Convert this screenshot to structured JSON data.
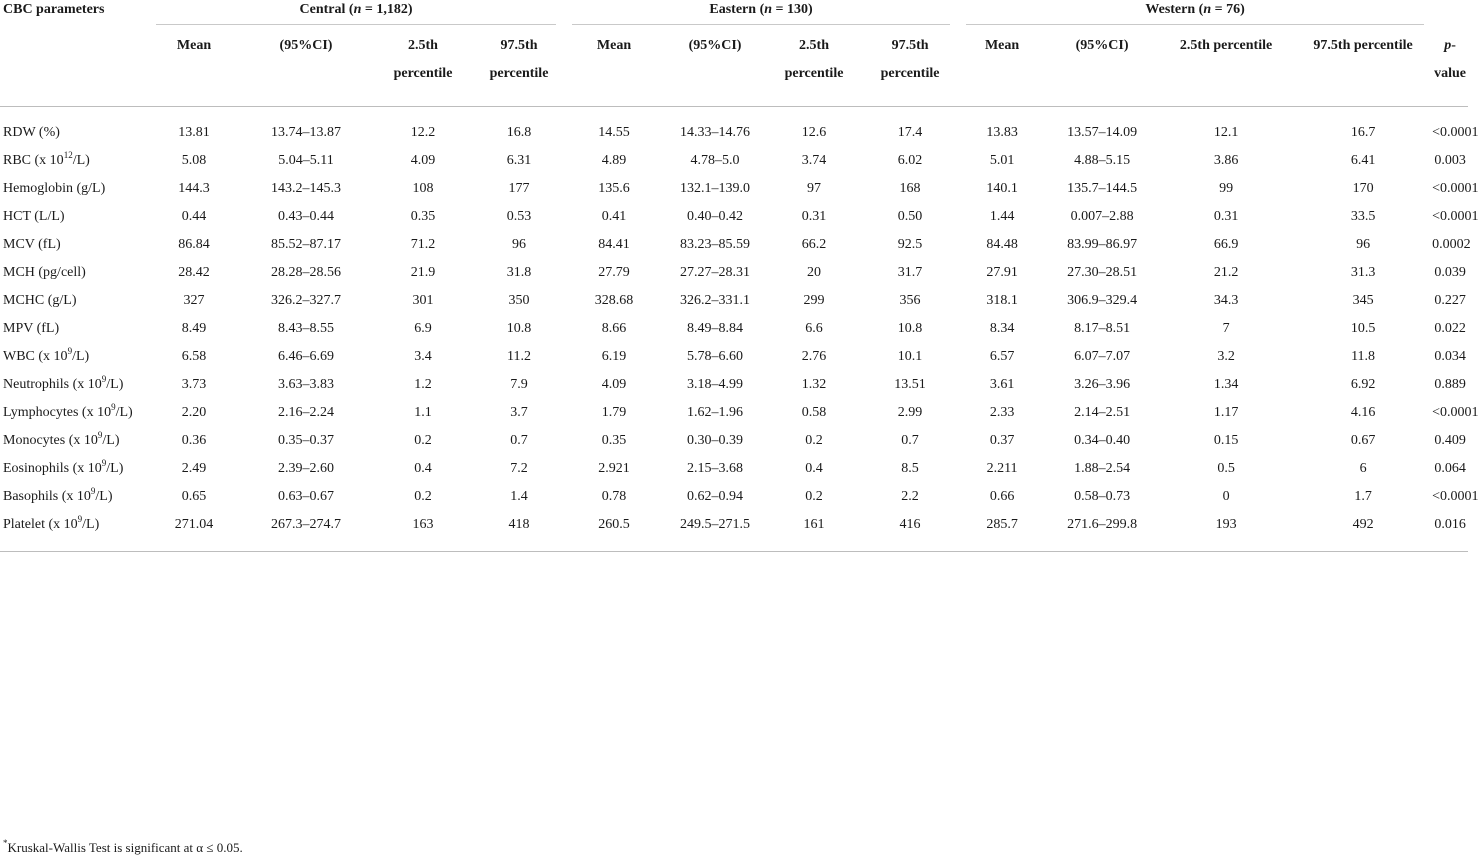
{
  "header": {
    "param_label": "CBC parameters",
    "groups": [
      {
        "name": "Central",
        "n_label": "n",
        "n_value": " = 1,182"
      },
      {
        "name": "Eastern",
        "n_label": "n",
        "n_value": " = 130"
      },
      {
        "name": "Western",
        "n_label": "n",
        "n_value": " = 76"
      }
    ],
    "sub": {
      "mean": "Mean",
      "ci": "(95%CI)",
      "p25_a": "2.5th",
      "p25_b": "percentile",
      "p975_a": "97.5th",
      "p975_b": "percentile",
      "p25_full": "2.5th percentile",
      "p975_full": "97.5th percentile",
      "pvalue_p": "p",
      "pvalue_rest": "-value"
    }
  },
  "rows": [
    {
      "pre": "RDW (%)",
      "sup": "",
      "post": "",
      "v": [
        "13.81",
        "13.74–13.87",
        "12.2",
        "16.8",
        "14.55",
        "14.33–14.76",
        "12.6",
        "17.4",
        "13.83",
        "13.57–14.09",
        "12.1",
        "16.7",
        "<0.0001"
      ]
    },
    {
      "pre": "RBC (x 10",
      "sup": "12",
      "post": "/L)",
      "v": [
        "5.08",
        "5.04–5.11",
        "4.09",
        "6.31",
        "4.89",
        "4.78–5.0",
        "3.74",
        "6.02",
        "5.01",
        "4.88–5.15",
        "3.86",
        "6.41",
        "0.003"
      ]
    },
    {
      "pre": "Hemoglobin (g/L)",
      "sup": "",
      "post": "",
      "v": [
        "144.3",
        "143.2–145.3",
        "108",
        "177",
        "135.6",
        "132.1–139.0",
        "97",
        "168",
        "140.1",
        "135.7–144.5",
        "99",
        "170",
        "<0.0001"
      ]
    },
    {
      "pre": "HCT (L/L)",
      "sup": "",
      "post": "",
      "v": [
        "0.44",
        "0.43–0.44",
        "0.35",
        "0.53",
        "0.41",
        "0.40–0.42",
        "0.31",
        "0.50",
        "1.44",
        "0.007–2.88",
        "0.31",
        "33.5",
        "<0.0001"
      ]
    },
    {
      "pre": "MCV (fL)",
      "sup": "",
      "post": "",
      "v": [
        "86.84",
        "85.52–87.17",
        "71.2",
        "96",
        "84.41",
        "83.23–85.59",
        "66.2",
        "92.5",
        "84.48",
        "83.99–86.97",
        "66.9",
        "96",
        "0.0002"
      ]
    },
    {
      "pre": "MCH (pg/cell)",
      "sup": "",
      "post": "",
      "v": [
        "28.42",
        "28.28–28.56",
        "21.9",
        "31.8",
        "27.79",
        "27.27–28.31",
        "20",
        "31.7",
        "27.91",
        "27.30–28.51",
        "21.2",
        "31.3",
        "0.039"
      ]
    },
    {
      "pre": "MCHC (g/L)",
      "sup": "",
      "post": "",
      "v": [
        "327",
        "326.2–327.7",
        "301",
        "350",
        "328.68",
        "326.2–331.1",
        "299",
        "356",
        "318.1",
        "306.9–329.4",
        "34.3",
        "345",
        "0.227"
      ]
    },
    {
      "pre": "MPV (fL)",
      "sup": "",
      "post": "",
      "v": [
        "8.49",
        "8.43–8.55",
        "6.9",
        "10.8",
        "8.66",
        "8.49–8.84",
        "6.6",
        "10.8",
        "8.34",
        "8.17–8.51",
        "7",
        "10.5",
        "0.022"
      ]
    },
    {
      "pre": "WBC (x 10",
      "sup": "9",
      "post": "/L)",
      "v": [
        "6.58",
        "6.46–6.69",
        "3.4",
        "11.2",
        "6.19",
        "5.78–6.60",
        "2.76",
        "10.1",
        "6.57",
        "6.07–7.07",
        "3.2",
        "11.8",
        "0.034"
      ]
    },
    {
      "pre": "Neutrophils (x 10",
      "sup": "9",
      "post": "/L)",
      "v": [
        "3.73",
        "3.63–3.83",
        "1.2",
        "7.9",
        "4.09",
        "3.18–4.99",
        "1.32",
        "13.51",
        "3.61",
        "3.26–3.96",
        "1.34",
        "6.92",
        "0.889"
      ]
    },
    {
      "pre": "Lymphocytes (x 10",
      "sup": "9",
      "post": "/L)",
      "v": [
        "2.20",
        "2.16–2.24",
        "1.1",
        "3.7",
        "1.79",
        "1.62–1.96",
        "0.58",
        "2.99",
        "2.33",
        "2.14–2.51",
        "1.17",
        "4.16",
        "<0.0001"
      ]
    },
    {
      "pre": "Monocytes (x 10",
      "sup": "9",
      "post": "/L)",
      "v": [
        "0.36",
        "0.35–0.37",
        "0.2",
        "0.7",
        "0.35",
        "0.30–0.39",
        "0.2",
        "0.7",
        "0.37",
        "0.34–0.40",
        "0.15",
        "0.67",
        "0.409"
      ]
    },
    {
      "pre": "Eosinophils (x 10",
      "sup": "9",
      "post": "/L)",
      "v": [
        "2.49",
        "2.39–2.60",
        "0.4",
        "7.2",
        "2.921",
        "2.15–3.68",
        "0.4",
        "8.5",
        "2.211",
        "1.88–2.54",
        "0.5",
        "6",
        "0.064"
      ]
    },
    {
      "pre": "Basophils (x 10",
      "sup": "9",
      "post": "/L)",
      "v": [
        "0.65",
        "0.63–0.67",
        "0.2",
        "1.4",
        "0.78",
        "0.62–0.94",
        "0.2",
        "2.2",
        "0.66",
        "0.58–0.73",
        "0",
        "1.7",
        "<0.0001"
      ]
    },
    {
      "pre": "Platelet (x 10",
      "sup": "9",
      "post": "/L)",
      "v": [
        "271.04",
        "267.3–274.7",
        "163",
        "418",
        "260.5",
        "249.5–271.5",
        "161",
        "416",
        "285.7",
        "271.6–299.8",
        "193",
        "492",
        "0.016"
      ]
    }
  ],
  "footnote": {
    "mark": "*",
    "text": "Kruskal-Wallis Test is significant at α ≤ 0.05."
  }
}
